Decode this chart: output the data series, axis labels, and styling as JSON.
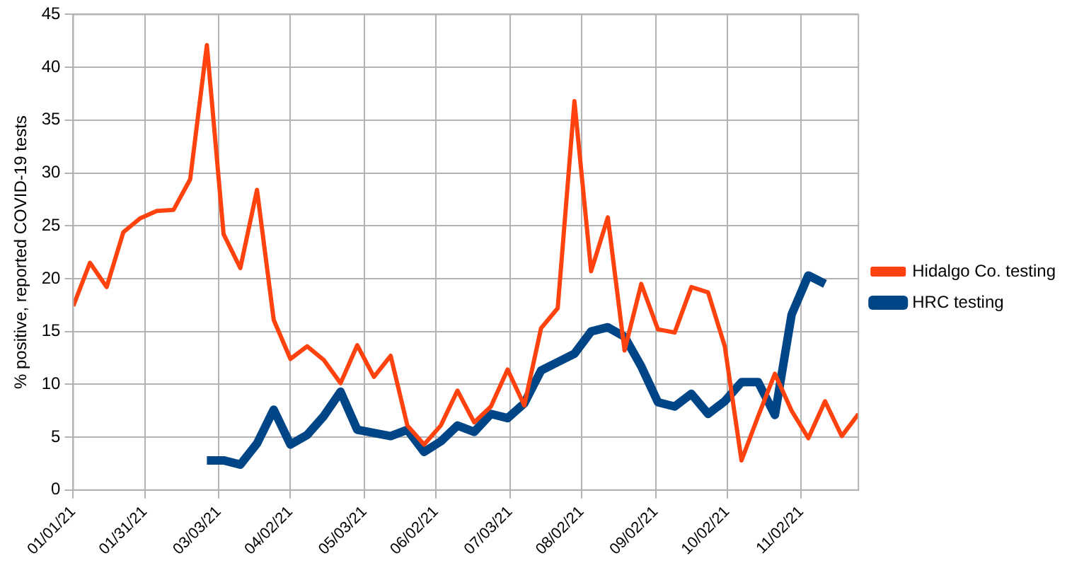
{
  "chart_data": {
    "type": "line",
    "ylabel": "% positive, reported COVID-19 tests",
    "x": [
      "2021-01-01",
      "2021-01-08",
      "2021-01-15",
      "2021-01-22",
      "2021-01-29",
      "2021-02-05",
      "2021-02-12",
      "2021-02-19",
      "2021-02-26",
      "2021-03-05",
      "2021-03-12",
      "2021-03-19",
      "2021-03-26",
      "2021-04-02",
      "2021-04-09",
      "2021-04-16",
      "2021-04-23",
      "2021-04-30",
      "2021-05-07",
      "2021-05-14",
      "2021-05-21",
      "2021-05-28",
      "2021-06-04",
      "2021-06-11",
      "2021-06-18",
      "2021-06-25",
      "2021-07-02",
      "2021-07-09",
      "2021-07-16",
      "2021-07-23",
      "2021-07-30",
      "2021-08-06",
      "2021-08-13",
      "2021-08-20",
      "2021-08-27",
      "2021-09-03",
      "2021-09-10",
      "2021-09-17",
      "2021-09-24",
      "2021-10-01",
      "2021-10-08",
      "2021-10-15",
      "2021-10-22",
      "2021-10-29",
      "2021-11-05",
      "2021-11-12",
      "2021-11-19",
      "2021-11-26"
    ],
    "series": [
      {
        "name": "Hidalgo Co. testing",
        "color": "#ff420e",
        "values": [
          17.4,
          21.5,
          19.2,
          24.4,
          25.7,
          26.4,
          26.5,
          29.4,
          42.1,
          24.2,
          21.0,
          28.4,
          16.1,
          12.4,
          13.6,
          12.3,
          10.1,
          13.7,
          10.7,
          12.7,
          6.1,
          4.3,
          6.1,
          9.4,
          6.4,
          7.9,
          11.4,
          8.0,
          15.3,
          17.2,
          36.8,
          20.7,
          25.8,
          13.2,
          19.5,
          15.2,
          14.9,
          19.2,
          18.7,
          13.6,
          2.8,
          7.0,
          11.0,
          7.5,
          4.9,
          8.4,
          5.1,
          7.2
        ]
      },
      {
        "name": "HRC testing",
        "color": "#004586",
        "values": [
          null,
          null,
          null,
          null,
          null,
          null,
          null,
          null,
          2.8,
          2.8,
          2.4,
          4.4,
          7.6,
          4.3,
          5.2,
          7.0,
          9.3,
          5.7,
          5.4,
          5.1,
          5.7,
          3.6,
          4.6,
          6.1,
          5.5,
          7.2,
          6.8,
          8.2,
          11.3,
          12.1,
          12.9,
          15.0,
          15.4,
          14.5,
          11.7,
          8.3,
          7.9,
          9.1,
          7.2,
          8.4,
          10.2,
          10.2,
          7.1,
          16.6,
          20.3,
          19.5,
          null,
          null
        ]
      }
    ],
    "xlim": [
      "2021-01-01",
      "2021-11-26"
    ],
    "xticks": [
      {
        "value": "2021-01-01",
        "label": "01/01/21"
      },
      {
        "value": "2021-01-31",
        "label": "01/31/21"
      },
      {
        "value": "2021-03-03",
        "label": "03/03/21"
      },
      {
        "value": "2021-04-02",
        "label": "04/02/21"
      },
      {
        "value": "2021-05-03",
        "label": "05/03/21"
      },
      {
        "value": "2021-06-02",
        "label": "06/02/21"
      },
      {
        "value": "2021-07-03",
        "label": "07/03/21"
      },
      {
        "value": "2021-08-02",
        "label": "08/02/21"
      },
      {
        "value": "2021-09-02",
        "label": "09/02/21"
      },
      {
        "value": "2021-10-02",
        "label": "10/02/21"
      },
      {
        "value": "2021-11-02",
        "label": "11/02/21"
      }
    ],
    "ylim": [
      0,
      45
    ],
    "yticks": [
      0,
      5,
      10,
      15,
      20,
      25,
      30,
      35,
      40,
      45
    ],
    "grid": true,
    "legend": "right",
    "marker": "none",
    "line_style": "solid"
  }
}
